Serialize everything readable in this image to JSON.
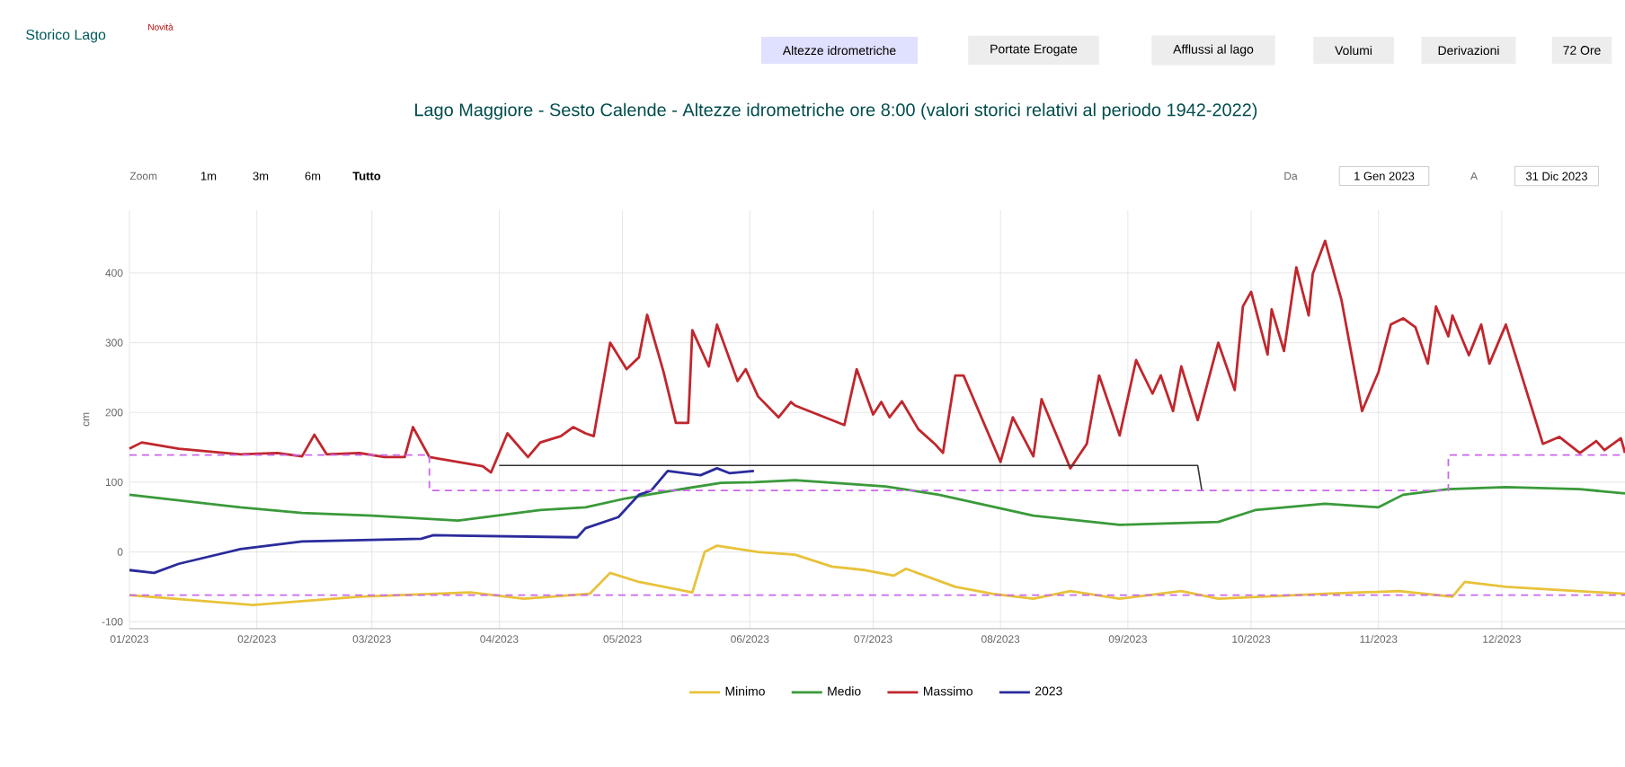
{
  "chart_data": {
    "type": "line",
    "title": "Lago Maggiore - Sesto Calende - Altezze idrometriche ore 8:00 (valori storici relativi al periodo 1942-2022)",
    "ylabel": "cm",
    "annotations": [
      "Storico Lago",
      "Novità",
      "Altezze idrometriche",
      "Portate Erogate",
      "Afflussi al lago",
      "Volumi",
      "Derivazioni",
      "72 Ore",
      "Zoom",
      "1m",
      "3m",
      "6m",
      "Tutto",
      "Da",
      "1 Gen 2023",
      "A",
      "31 Dic 2023"
    ],
    "xlim": [
      "2023-01-01",
      "2023-12-31"
    ],
    "ylim": [
      -110,
      490
    ],
    "xticks": [
      {
        "value": "2023-01-01",
        "label": "01/2023"
      },
      {
        "value": "2023-02-01",
        "label": "02/2023"
      },
      {
        "value": "2023-03-01",
        "label": "03/2023"
      },
      {
        "value": "2023-04-01",
        "label": "04/2023"
      },
      {
        "value": "2023-05-01",
        "label": "05/2023"
      },
      {
        "value": "2023-06-01",
        "label": "06/2023"
      },
      {
        "value": "2023-07-01",
        "label": "07/2023"
      },
      {
        "value": "2023-08-01",
        "label": "08/2023"
      },
      {
        "value": "2023-09-01",
        "label": "09/2023"
      },
      {
        "value": "2023-10-01",
        "label": "10/2023"
      },
      {
        "value": "2023-11-01",
        "label": "11/2023"
      },
      {
        "value": "2023-12-01",
        "label": "12/2023"
      }
    ],
    "yticks": [
      -100,
      0,
      100,
      200,
      300,
      400
    ],
    "grid": true,
    "legend": "bottom",
    "series": [
      {
        "name": "Minimo",
        "color": "#e8c23a",
        "x": [
          "2023-01-01",
          "2023-01-31",
          "2023-02-26",
          "2023-03-25",
          "2023-04-07",
          "2023-04-23",
          "2023-04-28",
          "2023-05-05",
          "2023-05-18",
          "2023-05-21",
          "2023-05-24",
          "2023-06-03",
          "2023-06-12",
          "2023-06-21",
          "2023-06-29",
          "2023-07-06",
          "2023-07-09",
          "2023-07-21",
          "2023-07-30",
          "2023-08-09",
          "2023-08-18",
          "2023-08-30",
          "2023-09-14",
          "2023-09-23",
          "2023-10-19",
          "2023-11-06",
          "2023-11-19",
          "2023-11-22",
          "2023-12-02",
          "2023-12-31"
        ],
        "values": [
          -62,
          -76,
          -64,
          -58,
          -67,
          -60,
          -30,
          -43,
          -58,
          0,
          9,
          0,
          -4,
          -21,
          -26,
          -34,
          -24,
          -50,
          -60,
          -67,
          -56,
          -67,
          -56,
          -67,
          -60,
          -56,
          -64,
          -43,
          -50,
          -60
        ]
      },
      {
        "name": "Medio",
        "color": "#3a9a3a",
        "x": [
          "2023-01-01",
          "2023-01-28",
          "2023-02-12",
          "2023-03-01",
          "2023-03-22",
          "2023-04-11",
          "2023-04-22",
          "2023-05-02",
          "2023-05-11",
          "2023-05-25",
          "2023-06-02",
          "2023-06-12",
          "2023-07-04",
          "2023-07-17",
          "2023-08-09",
          "2023-08-30",
          "2023-09-23",
          "2023-10-02",
          "2023-10-19",
          "2023-11-01",
          "2023-11-07",
          "2023-11-18",
          "2023-12-02",
          "2023-12-20",
          "2023-12-31"
        ],
        "values": [
          82,
          64,
          56,
          52,
          45,
          60,
          64,
          77,
          86,
          99,
          100,
          103,
          94,
          82,
          52,
          39,
          43,
          60,
          69,
          64,
          82,
          90,
          93,
          90,
          84
        ]
      },
      {
        "name": "Massimo",
        "color": "#c0272d",
        "x": [
          "2023-01-01",
          "2023-01-04",
          "2023-01-13",
          "2023-01-28",
          "2023-02-06",
          "2023-02-12",
          "2023-02-15",
          "2023-02-18",
          "2023-02-26",
          "2023-03-04",
          "2023-03-09",
          "2023-03-11",
          "2023-03-15",
          "2023-03-22",
          "2023-03-28",
          "2023-03-30",
          "2023-04-03",
          "2023-04-08",
          "2023-04-11",
          "2023-04-16",
          "2023-04-19",
          "2023-04-22",
          "2023-04-24",
          "2023-04-28",
          "2023-05-02",
          "2023-05-05",
          "2023-05-07",
          "2023-05-11",
          "2023-05-14",
          "2023-05-17",
          "2023-05-18",
          "2023-05-22",
          "2023-05-24",
          "2023-05-29",
          "2023-05-31",
          "2023-06-03",
          "2023-06-08",
          "2023-06-11",
          "2023-06-12",
          "2023-06-24",
          "2023-06-27",
          "2023-07-01",
          "2023-07-03",
          "2023-07-05",
          "2023-07-08",
          "2023-07-12",
          "2023-07-16",
          "2023-07-18",
          "2023-07-21",
          "2023-07-23",
          "2023-08-01",
          "2023-08-04",
          "2023-08-09",
          "2023-08-11",
          "2023-08-18",
          "2023-08-22",
          "2023-08-25",
          "2023-08-30",
          "2023-09-03",
          "2023-09-07",
          "2023-09-09",
          "2023-09-12",
          "2023-09-14",
          "2023-09-18",
          "2023-09-23",
          "2023-09-27",
          "2023-09-29",
          "2023-10-01",
          "2023-10-05",
          "2023-10-06",
          "2023-10-09",
          "2023-10-12",
          "2023-10-15",
          "2023-10-16",
          "2023-10-19",
          "2023-10-23",
          "2023-10-28",
          "2023-11-01",
          "2023-11-04",
          "2023-11-07",
          "2023-11-10",
          "2023-11-13",
          "2023-11-15",
          "2023-11-18",
          "2023-11-19",
          "2023-11-23",
          "2023-11-26",
          "2023-11-28",
          "2023-12-02",
          "2023-12-11",
          "2023-12-15",
          "2023-12-20",
          "2023-12-24",
          "2023-12-26",
          "2023-12-30",
          "2023-12-31"
        ],
        "values": [
          148,
          157,
          148,
          140,
          142,
          137,
          168,
          140,
          142,
          136,
          136,
          179,
          136,
          129,
          123,
          114,
          170,
          136,
          157,
          166,
          179,
          170,
          166,
          300,
          262,
          279,
          340,
          258,
          185,
          185,
          318,
          266,
          326,
          245,
          262,
          223,
          193,
          215,
          210,
          182,
          262,
          197,
          215,
          193,
          216,
          176,
          155,
          142,
          253,
          253,
          129,
          193,
          137,
          219,
          120,
          155,
          253,
          167,
          275,
          227,
          253,
          202,
          266,
          189,
          300,
          232,
          352,
          373,
          283,
          348,
          288,
          408,
          339,
          399,
          446,
          361,
          202,
          258,
          326,
          335,
          322,
          270,
          352,
          309,
          339,
          282,
          326,
          270,
          326,
          155,
          165,
          142,
          159,
          146,
          163,
          142
        ]
      },
      {
        "name": "2023",
        "color": "#2b2b9c",
        "x": [
          "2023-01-01",
          "2023-01-07",
          "2023-01-13",
          "2023-01-28",
          "2023-02-12",
          "2023-03-13",
          "2023-03-16",
          "2023-04-20",
          "2023-04-22",
          "2023-04-30",
          "2023-05-05",
          "2023-05-08",
          "2023-05-12",
          "2023-05-20",
          "2023-05-24",
          "2023-05-27",
          "2023-06-02"
        ],
        "values": [
          -26,
          -30,
          -17,
          4,
          15,
          19,
          24,
          21,
          34,
          50,
          82,
          88,
          116,
          110,
          120,
          113,
          116
        ]
      },
      {
        "color": "#333333",
        "x": [
          "2023-04-01",
          "2023-09-18",
          "2023-09-19"
        ],
        "values": [
          124,
          124,
          88
        ]
      },
      {
        "color": "#cc66ee",
        "line_style": "dashed",
        "x": [
          "2023-01-01",
          "2023-03-15",
          "2023-03-15",
          "2023-11-18",
          "2023-11-18",
          "2023-12-31"
        ],
        "values": [
          139,
          139,
          88,
          88,
          139,
          139
        ]
      },
      {
        "color": "#cc66ee",
        "line_style": "dashed",
        "x": [
          "2023-01-01",
          "2023-12-31"
        ],
        "values": [
          -62,
          -62
        ]
      }
    ]
  }
}
